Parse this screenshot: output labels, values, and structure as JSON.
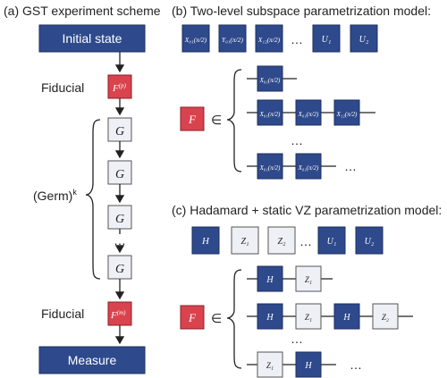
{
  "panels": {
    "a": {
      "title": "(a) GST experiment scheme",
      "initial": "Initial state",
      "fiducial_label": "Fiducial",
      "fiducial_prep": "F",
      "fiducial_prep_sup": "(p)",
      "germ_gate": "G",
      "germ_label": "(Germ)",
      "germ_power": "k",
      "ellipsis": "…",
      "fiducial_meas": "F",
      "fiducial_meas_sup": "(m)",
      "measure": "Measure"
    },
    "b": {
      "title": "(b) Two-level subspace parametrization model:",
      "gates": [
        "X01(π/2)",
        "Y01(π/2)",
        "X12(π/2)",
        "U1",
        "U2"
      ],
      "ellipsis": "…",
      "F": "F",
      "elem": "∈"
    },
    "c": {
      "title": "(c) Hadamard + static VZ parametrization model:",
      "gates": [
        "H",
        "Z1",
        "Z2",
        "U1",
        "U2"
      ],
      "ellipsis": "…",
      "F": "F",
      "elem": "∈"
    }
  },
  "colors": {
    "navy": "#2e4a8c",
    "red": "#d9434e",
    "light": "#eef0f6",
    "line": "#222222"
  }
}
